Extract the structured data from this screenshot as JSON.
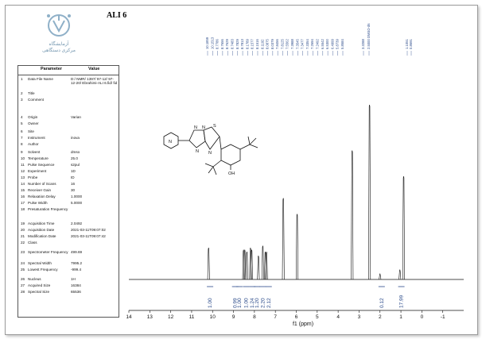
{
  "document": {
    "title": "ALI 6",
    "logo_text": [
      "آزمایشگاه",
      "مرکزی دستگاهی"
    ]
  },
  "parameters": {
    "header": {
      "parameter": "Parameter",
      "value": "Value"
    },
    "rows": [
      {
        "num": "1",
        "name": "Data File Name",
        "value": "D:/ NMR/ 1397/ 97-12/ 97-12-20/ Ebrahimi-ALI 6.fid/ fid"
      },
      {
        "num": "2",
        "name": "Title",
        "value": ""
      },
      {
        "num": "3",
        "name": "Comment",
        "value": ""
      },
      {
        "num": "4",
        "name": "Origin",
        "value": "Varian"
      },
      {
        "num": "5",
        "name": "Owner",
        "value": ""
      },
      {
        "num": "6",
        "name": "Site",
        "value": ""
      },
      {
        "num": "7",
        "name": "Instrument",
        "value": "inova"
      },
      {
        "num": "8",
        "name": "Author",
        "value": ""
      },
      {
        "num": "9",
        "name": "Solvent",
        "value": "dmso"
      },
      {
        "num": "10",
        "name": "Temperature",
        "value": "25.0"
      },
      {
        "num": "11",
        "name": "Pulse Sequence",
        "value": "s2pul"
      },
      {
        "num": "12",
        "name": "Experiment",
        "value": "1D"
      },
      {
        "num": "13",
        "name": "Probe",
        "value": "ID"
      },
      {
        "num": "14",
        "name": "Number of Scans",
        "value": "16"
      },
      {
        "num": "15",
        "name": "Receiver Gain",
        "value": "30"
      },
      {
        "num": "16",
        "name": "Relaxation Delay",
        "value": "1.0000"
      },
      {
        "num": "17",
        "name": "Pulse Width",
        "value": "5.0000"
      },
      {
        "num": "18",
        "name": "Presaturation Frequency",
        "value": ""
      },
      {
        "num": "19",
        "name": "Acquisition Time",
        "value": "2.0492"
      },
      {
        "num": "20",
        "name": "Acquisition Date",
        "value": "2021-03-11T09:07:02"
      },
      {
        "num": "21",
        "name": "Modification Date",
        "value": "2021-03-11T09:07:42"
      },
      {
        "num": "22",
        "name": "Class",
        "value": ""
      },
      {
        "num": "23",
        "name": "Spectrometer Frequency",
        "value": "499.69"
      },
      {
        "num": "24",
        "name": "Spectral Width",
        "value": "7995.2"
      },
      {
        "num": "25",
        "name": "Lowest Frequency",
        "value": "-999.4"
      },
      {
        "num": "26",
        "name": "Nucleus",
        "value": "1H"
      },
      {
        "num": "27",
        "name": "Acquired Size",
        "value": "16384"
      },
      {
        "num": "28",
        "name": "Spectral Size",
        "value": "65536"
      }
    ]
  },
  "chart_data": {
    "type": "line",
    "xlabel": "f1 (ppm)",
    "xlim": [
      14,
      -2
    ],
    "x_ticks": [
      14,
      13,
      12,
      11,
      10,
      9,
      8,
      7,
      6,
      5,
      4,
      3,
      2,
      1,
      0,
      -1
    ],
    "x_tick_labels": [
      "14",
      "13",
      "12",
      "11",
      "10",
      "9",
      "8",
      "7",
      "6",
      "5",
      "4",
      "3",
      "2",
      "1",
      "0",
      "-1"
    ],
    "peaks": [
      {
        "ppm": 10.19,
        "height": 0.16
      },
      {
        "ppm": 8.52,
        "height": 0.15
      },
      {
        "ppm": 8.46,
        "height": 0.15
      },
      {
        "ppm": 8.36,
        "height": 0.14
      },
      {
        "ppm": 8.19,
        "height": 0.16
      },
      {
        "ppm": 8.13,
        "height": 0.15
      },
      {
        "ppm": 7.81,
        "height": 0.12
      },
      {
        "ppm": 7.6,
        "height": 0.17
      },
      {
        "ppm": 7.48,
        "height": 0.14
      },
      {
        "ppm": 7.42,
        "height": 0.14
      },
      {
        "ppm": 6.62,
        "height": 0.41
      },
      {
        "ppm": 5.96,
        "height": 0.33
      },
      {
        "ppm": 3.33,
        "height": 0.65
      },
      {
        "ppm": 2.5,
        "height": 0.88
      },
      {
        "ppm": 2.0,
        "height": 0.03
      },
      {
        "ppm": 1.05,
        "height": 0.05
      },
      {
        "ppm": 0.87,
        "height": 0.52
      }
    ],
    "peak_labels": {
      "group1": [
        "10.1859",
        "10.1513",
        "8.7786",
        "8.7656",
        "8.7629",
        "8.7483",
        "8.7829",
        "8.7813",
        "8.1789",
        "8.1577",
        "8.1516",
        "8.1192",
        "8.0875",
        "8.0379",
        "7.8456",
        "7.8125",
        "7.5562",
        "7.3988",
        "7.3545",
        "7.3477",
        "7.3354",
        "7.2694",
        "7.2492",
        "6.5542",
        "6.5300",
        "6.4999",
        "5.8739",
        "5.8584"
      ],
      "group2": [
        "3.3288",
        "2.5000 DMSO-d6"
      ],
      "group3": [
        "1.1051",
        "0.8691"
      ]
    },
    "integrals": [
      {
        "ppm": 10.12,
        "label": "1.00"
      },
      {
        "ppm": 8.92,
        "label": "0.99"
      },
      {
        "ppm": 8.72,
        "label": "1.00"
      },
      {
        "ppm": 8.4,
        "label": "1.00"
      },
      {
        "ppm": 8.1,
        "label": "1.24"
      },
      {
        "ppm": 7.88,
        "label": "1.20"
      },
      {
        "ppm": 7.6,
        "label": "2.20"
      },
      {
        "ppm": 7.32,
        "label": "2.12"
      },
      {
        "ppm": 1.92,
        "label": "0.12"
      },
      {
        "ppm": 0.98,
        "label": "17.99"
      }
    ],
    "structure_labels": [
      "N",
      "N",
      "N",
      "N",
      "S",
      "N",
      "OH"
    ]
  }
}
